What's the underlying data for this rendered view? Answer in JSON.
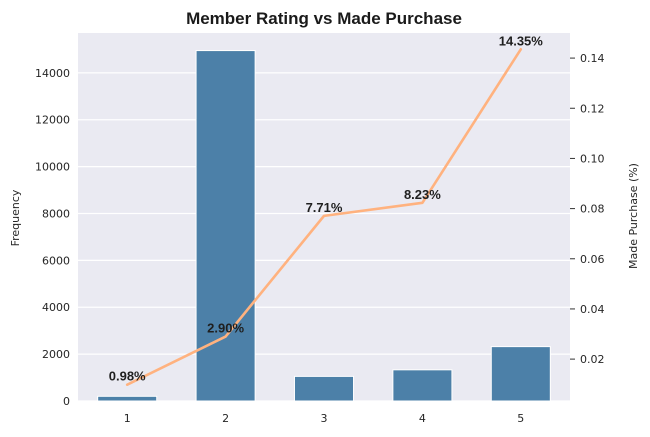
{
  "chart_data": {
    "type": "bar",
    "title": "Member Rating vs Made Purchase",
    "xlabel": "",
    "ylabel": "Frequency",
    "y2label": "Made Purchase (%)",
    "categories": [
      "1",
      "2",
      "3",
      "4",
      "5"
    ],
    "series": [
      {
        "type": "bar",
        "axis": "left",
        "values": [
          200,
          14950,
          1050,
          1330,
          2320
        ]
      },
      {
        "type": "line",
        "axis": "right",
        "values": [
          0.0098,
          0.029,
          0.0771,
          0.0823,
          0.1435
        ],
        "data_labels": [
          "0.98%",
          "2.90%",
          "7.71%",
          "8.23%",
          "14.35%"
        ]
      }
    ],
    "ylim": [
      0,
      15700
    ],
    "yticks": [
      0,
      2000,
      4000,
      6000,
      8000,
      10000,
      12000,
      14000
    ],
    "y2lim": [
      0.0033,
      0.15
    ],
    "y2ticks": [
      0.02,
      0.04,
      0.06,
      0.08,
      0.1,
      0.12,
      0.14
    ],
    "y2tick_labels": [
      "0.02",
      "0.04",
      "0.06",
      "0.08",
      "0.10",
      "0.12",
      "0.14"
    ],
    "grid": true,
    "colors": {
      "bar": "#4c80a8",
      "line": "#ffb27f",
      "plot_bg": "#eaeaf2",
      "grid": "#ffffff"
    }
  }
}
